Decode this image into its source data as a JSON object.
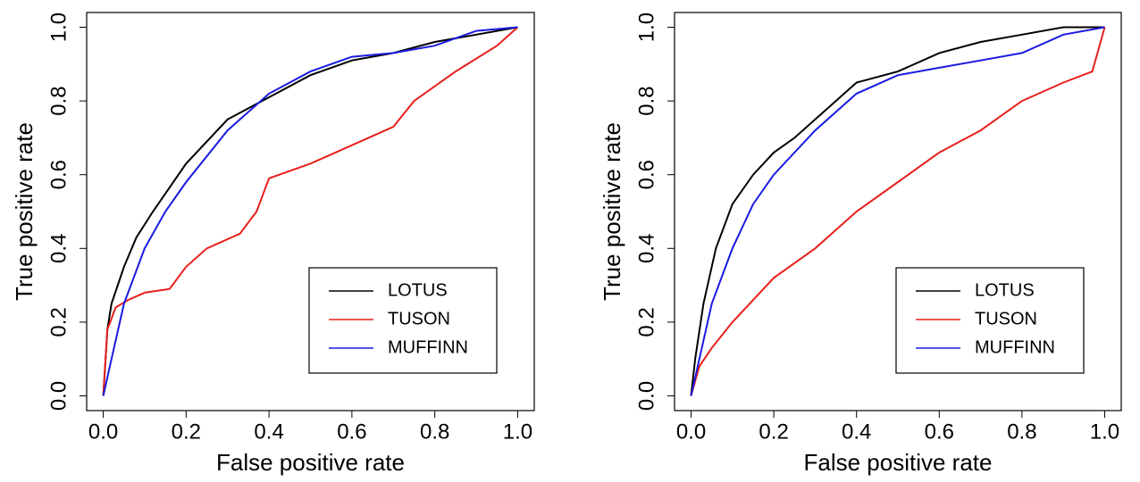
{
  "chart_data": [
    {
      "type": "line",
      "xlabel": "False positive rate",
      "ylabel": "True positive rate",
      "xlim": [
        -0.04,
        1.04
      ],
      "ylim": [
        -0.04,
        1.04
      ],
      "xticks": [
        {
          "value": 0,
          "label": "0.0"
        },
        0.2,
        0.4,
        0.6,
        0.8,
        {
          "value": 1,
          "label": "1.0"
        }
      ],
      "yticks": [
        {
          "value": 0,
          "label": "0.0"
        },
        0.2,
        0.4,
        0.6,
        0.8,
        {
          "value": 1,
          "label": "1.0"
        }
      ],
      "legend": "bottom-right",
      "series": [
        {
          "name": "LOTUS",
          "color": "#000000",
          "x": [
            0,
            0.01,
            0.02,
            0.05,
            0.08,
            0.12,
            0.2,
            0.3,
            0.4,
            0.5,
            0.6,
            0.7,
            0.8,
            0.9,
            1
          ],
          "values": [
            0,
            0.18,
            0.25,
            0.35,
            0.43,
            0.5,
            0.63,
            0.75,
            0.81,
            0.87,
            0.91,
            0.93,
            0.96,
            0.98,
            1
          ]
        },
        {
          "name": "TUSON",
          "color": "#e8201c",
          "x": [
            0,
            0.01,
            0.03,
            0.06,
            0.1,
            0.16,
            0.2,
            0.25,
            0.33,
            0.37,
            0.4,
            0.5,
            0.6,
            0.7,
            0.75,
            0.85,
            0.95,
            1
          ],
          "values": [
            0,
            0.18,
            0.24,
            0.26,
            0.28,
            0.29,
            0.35,
            0.4,
            0.44,
            0.5,
            0.59,
            0.63,
            0.68,
            0.73,
            0.8,
            0.88,
            0.95,
            1
          ]
        },
        {
          "name": "MUFFINN",
          "color": "#1a1ae0",
          "x": [
            0,
            0.02,
            0.05,
            0.1,
            0.15,
            0.2,
            0.3,
            0.4,
            0.5,
            0.6,
            0.7,
            0.8,
            0.9,
            1
          ],
          "values": [
            0,
            0.1,
            0.25,
            0.4,
            0.5,
            0.58,
            0.72,
            0.82,
            0.88,
            0.92,
            0.93,
            0.95,
            0.99,
            1
          ]
        }
      ]
    },
    {
      "type": "line",
      "xlabel": "False positive rate",
      "ylabel": "True positive rate",
      "xlim": [
        -0.04,
        1.04
      ],
      "ylim": [
        -0.04,
        1.04
      ],
      "xticks": [
        {
          "value": 0,
          "label": "0.0"
        },
        0.2,
        0.4,
        0.6,
        0.8,
        {
          "value": 1,
          "label": "1.0"
        }
      ],
      "yticks": [
        {
          "value": 0,
          "label": "0.0"
        },
        0.2,
        0.4,
        0.6,
        0.8,
        {
          "value": 1,
          "label": "1.0"
        }
      ],
      "legend": "bottom-right",
      "series": [
        {
          "name": "LOTUS",
          "color": "#000000",
          "x": [
            0,
            0.01,
            0.03,
            0.06,
            0.1,
            0.15,
            0.2,
            0.25,
            0.3,
            0.4,
            0.5,
            0.6,
            0.7,
            0.8,
            0.9,
            1
          ],
          "values": [
            0,
            0.1,
            0.25,
            0.4,
            0.52,
            0.6,
            0.66,
            0.7,
            0.75,
            0.85,
            0.88,
            0.93,
            0.96,
            0.98,
            1,
            1
          ]
        },
        {
          "name": "TUSON",
          "color": "#e8201c",
          "x": [
            0,
            0.02,
            0.05,
            0.1,
            0.15,
            0.2,
            0.3,
            0.4,
            0.5,
            0.6,
            0.7,
            0.8,
            0.9,
            0.97,
            1
          ],
          "values": [
            0,
            0.08,
            0.13,
            0.2,
            0.26,
            0.32,
            0.4,
            0.5,
            0.58,
            0.66,
            0.72,
            0.8,
            0.85,
            0.88,
            1
          ]
        },
        {
          "name": "MUFFINN",
          "color": "#1a1ae0",
          "x": [
            0,
            0.02,
            0.05,
            0.1,
            0.15,
            0.2,
            0.3,
            0.4,
            0.5,
            0.6,
            0.7,
            0.8,
            0.9,
            1
          ],
          "values": [
            0,
            0.1,
            0.25,
            0.4,
            0.52,
            0.6,
            0.72,
            0.82,
            0.87,
            0.89,
            0.91,
            0.93,
            0.98,
            1
          ]
        }
      ]
    }
  ]
}
